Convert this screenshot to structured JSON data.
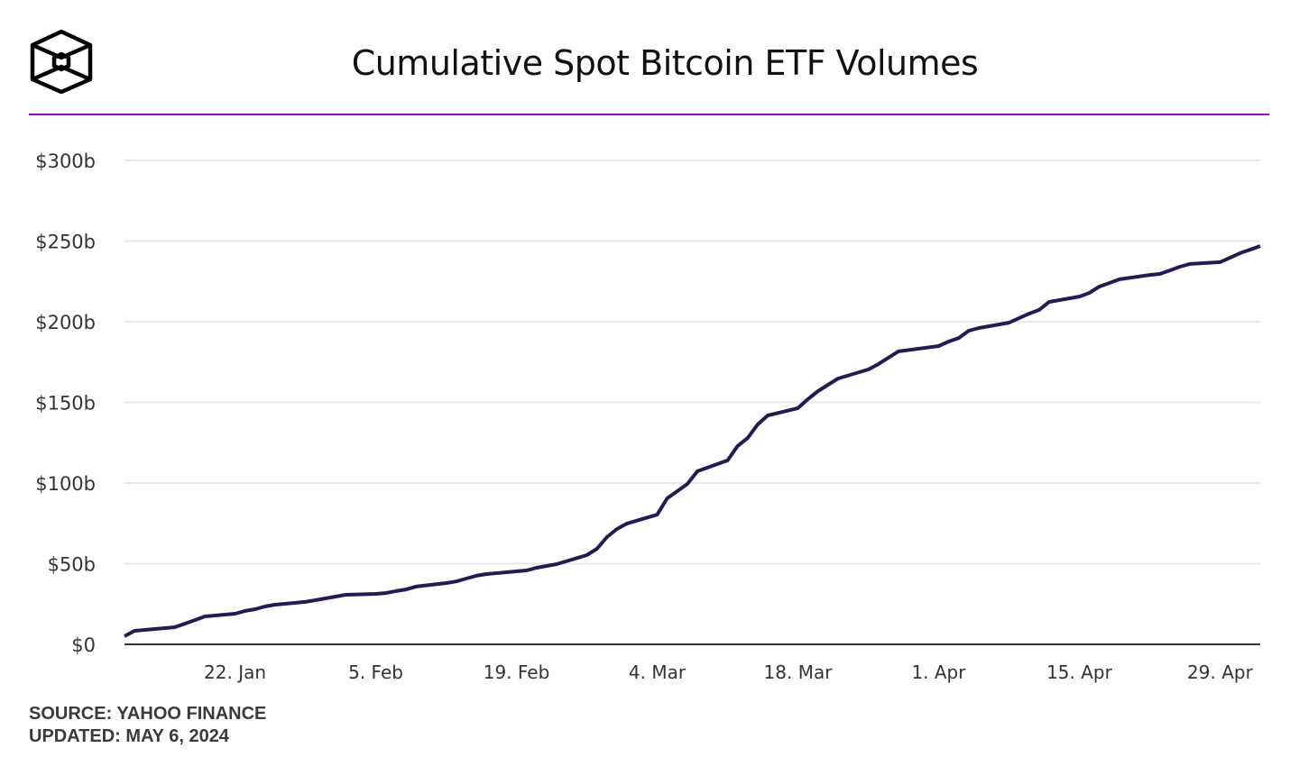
{
  "header": {
    "title": "Cumulative Spot Bitcoin ETF Volumes",
    "logo": "the-block-cube-logo"
  },
  "footer": {
    "source": "SOURCE: YAHOO FINANCE",
    "updated": "UPDATED: MAY 6, 2024"
  },
  "colors": {
    "line": "#231a5a",
    "accent_rule": "#a100e6",
    "grid": "#e8e8e8",
    "axis": "#333333"
  },
  "chart_data": {
    "type": "line",
    "title": "Cumulative Spot Bitcoin ETF Volumes",
    "xlabel": "",
    "ylabel": "",
    "xlim": [
      "2024-01-11",
      "2024-05-03"
    ],
    "ylim": [
      0,
      300
    ],
    "grid": true,
    "y_ticks": [
      0,
      50,
      100,
      150,
      200,
      250,
      300
    ],
    "y_tick_labels": [
      "$0",
      "$50b",
      "$100b",
      "$150b",
      "$200b",
      "$250b",
      "$300b"
    ],
    "x_ticks": [
      "2024-01-22",
      "2024-02-05",
      "2024-02-19",
      "2024-03-04",
      "2024-03-18",
      "2024-04-01",
      "2024-04-15",
      "2024-04-29"
    ],
    "x_tick_labels": [
      "22. Jan",
      "5. Feb",
      "19. Feb",
      "4. Mar",
      "18. Mar",
      "1. Apr",
      "15. Apr",
      "29. Apr"
    ],
    "series": [
      {
        "x": [
          "2024-01-11",
          "2024-01-12",
          "2024-01-16",
          "2024-01-17",
          "2024-01-18",
          "2024-01-19",
          "2024-01-22",
          "2024-01-23",
          "2024-01-24",
          "2024-01-25",
          "2024-01-26",
          "2024-01-29",
          "2024-01-30",
          "2024-01-31",
          "2024-02-01",
          "2024-02-02",
          "2024-02-05",
          "2024-02-06",
          "2024-02-07",
          "2024-02-08",
          "2024-02-09",
          "2024-02-12",
          "2024-02-13",
          "2024-02-14",
          "2024-02-15",
          "2024-02-16",
          "2024-02-20",
          "2024-02-21",
          "2024-02-22",
          "2024-02-23",
          "2024-02-26",
          "2024-02-27",
          "2024-02-28",
          "2024-02-29",
          "2024-03-01",
          "2024-03-04",
          "2024-03-05",
          "2024-03-06",
          "2024-03-07",
          "2024-03-08",
          "2024-03-11",
          "2024-03-12",
          "2024-03-13",
          "2024-03-14",
          "2024-03-15",
          "2024-03-18",
          "2024-03-19",
          "2024-03-20",
          "2024-03-21",
          "2024-03-22",
          "2024-03-25",
          "2024-03-26",
          "2024-03-27",
          "2024-03-28",
          "2024-04-01",
          "2024-04-02",
          "2024-04-03",
          "2024-04-04",
          "2024-04-05",
          "2024-04-08",
          "2024-04-09",
          "2024-04-10",
          "2024-04-11",
          "2024-04-12",
          "2024-04-15",
          "2024-04-16",
          "2024-04-17",
          "2024-04-18",
          "2024-04-19",
          "2024-04-22",
          "2024-04-23",
          "2024-04-24",
          "2024-04-25",
          "2024-04-26",
          "2024-04-29",
          "2024-04-30",
          "2024-05-01",
          "2024-05-02",
          "2024-05-03"
        ],
        "values": [
          5,
          8.4,
          10.6,
          12.8,
          15,
          17.3,
          19,
          20.7,
          21.8,
          23.5,
          24.6,
          26.3,
          27.4,
          28.5,
          29.6,
          30.7,
          31.3,
          31.8,
          33,
          34,
          35.8,
          38,
          39,
          40.8,
          42.5,
          43.6,
          45.8,
          47.5,
          48.6,
          49.7,
          55.3,
          59.2,
          66.5,
          71.5,
          74.9,
          80.4,
          90.5,
          95,
          99.4,
          107.3,
          114,
          122.9,
          127.9,
          136.3,
          141.9,
          146.4,
          152,
          157,
          160.9,
          164.8,
          170.4,
          173.7,
          177.7,
          181.6,
          184.9,
          187.7,
          189.9,
          194.4,
          196.1,
          199.4,
          202.2,
          205,
          207.3,
          212.3,
          215.6,
          217.9,
          221.8,
          224,
          226.3,
          229,
          229.6,
          231.8,
          234.1,
          235.8,
          236.9,
          239.7,
          242.5,
          244.7,
          246.9
        ]
      }
    ]
  }
}
